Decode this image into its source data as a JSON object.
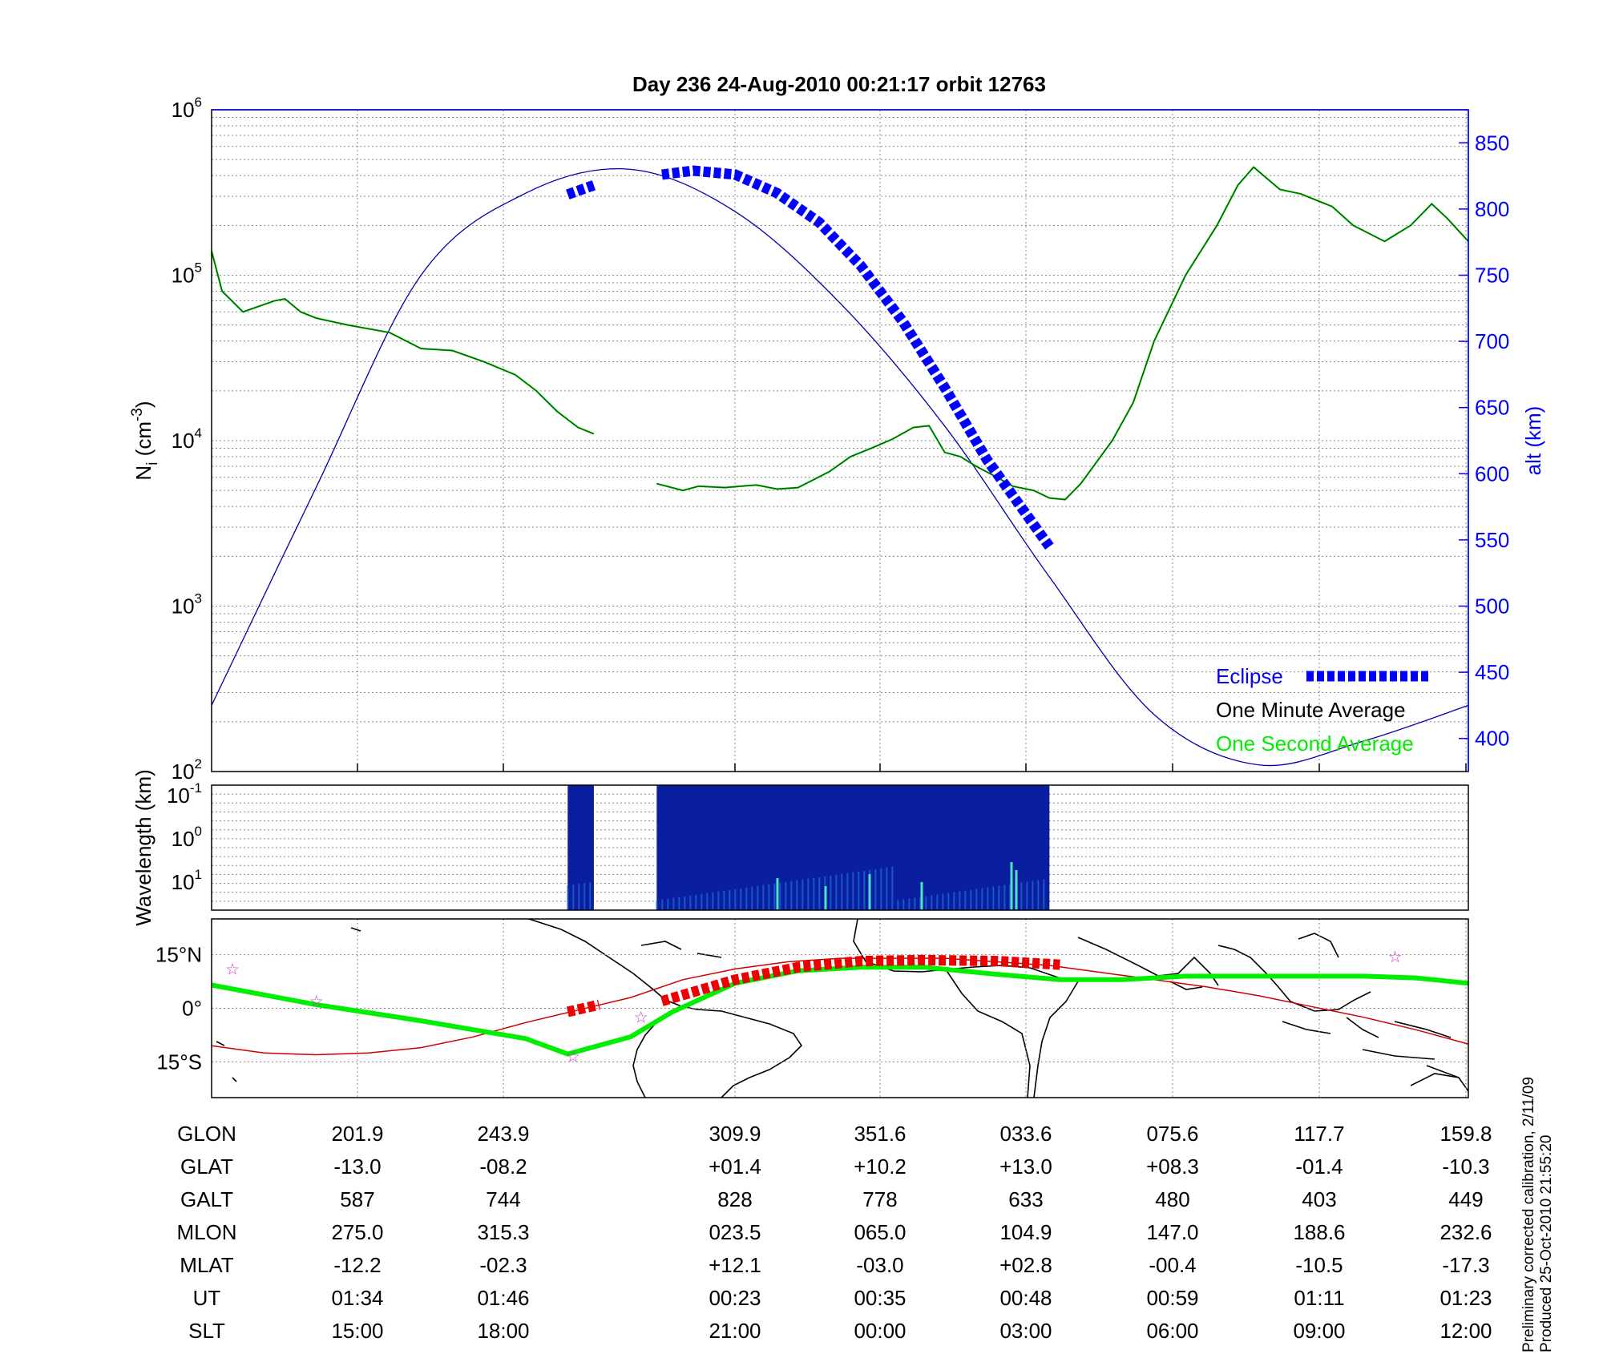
{
  "colors": {
    "ion_line": "#006400",
    "one_second": "#00ff00",
    "alt_line": "#0000aa",
    "eclipse": "#0000ff",
    "axis_blue": "#0000ff",
    "ground_track": "#00ee00",
    "footprint_line": "#cc0000",
    "footprint_eclipse": "#ee0000",
    "stars": "#cc33cc",
    "spectrogram_bg": "#0a1f9f"
  },
  "chart_data": [
    {
      "type": "line",
      "title": "Day 236  24-Aug-2010 00:21:17   orbit 12763",
      "ylabel_main": "N",
      "ylabel_sub": "i",
      "ylabel_unit_pre": " (cm",
      "ylabel_unit_sup": "-3",
      "ylabel_unit_post": ")",
      "y_log_ticks": [
        {
          "value": 100,
          "base": "10",
          "exp": "2"
        },
        {
          "value": 1000,
          "base": "10",
          "exp": "3"
        },
        {
          "value": 10000,
          "base": "10",
          "exp": "4"
        },
        {
          "value": 100000,
          "base": "10",
          "exp": "5"
        },
        {
          "value": 1000000,
          "base": "10",
          "exp": "6"
        }
      ],
      "y_right_label": "alt (km)",
      "y_right_ticks": [
        "400",
        "450",
        "500",
        "550",
        "600",
        "650",
        "700",
        "750",
        "800",
        "850"
      ],
      "y_right_range": [
        375,
        875
      ],
      "x_positions": [
        0,
        1,
        2,
        3,
        4,
        5,
        6,
        7,
        8
      ],
      "legend": {
        "placement": "bottom-right",
        "entries": [
          {
            "label": "Eclipse",
            "color": "#0000ff"
          },
          {
            "label": "One Minute Average",
            "color": "#000000"
          },
          {
            "label": "One Second Average",
            "color": "#00ff00"
          }
        ]
      },
      "series": [
        {
          "name": "One Minute Average",
          "segment_a": [
            [
              0,
              140000
            ],
            [
              0.1,
              80000
            ],
            [
              0.3,
              60000
            ],
            [
              0.6,
              70000
            ],
            [
              0.7,
              72000
            ],
            [
              0.85,
              60000
            ],
            [
              1.0,
              55000
            ],
            [
              1.3,
              50000
            ],
            [
              1.7,
              45000
            ],
            [
              2.0,
              36000
            ],
            [
              2.3,
              35000
            ],
            [
              2.6,
              30000
            ],
            [
              2.9,
              25000
            ],
            [
              3.1,
              20000
            ],
            [
              3.3,
              15000
            ],
            [
              3.5,
              12000
            ],
            [
              3.65,
              11000
            ]
          ],
          "segment_b": [
            [
              4.25,
              5500
            ],
            [
              4.5,
              5000
            ],
            [
              4.65,
              5300
            ],
            [
              4.9,
              5200
            ],
            [
              5.2,
              5400
            ],
            [
              5.4,
              5100
            ],
            [
              5.6,
              5200
            ],
            [
              5.9,
              6500
            ],
            [
              6.1,
              8000
            ],
            [
              6.3,
              9000
            ],
            [
              6.5,
              10200
            ],
            [
              6.7,
              12000
            ],
            [
              6.85,
              12300
            ],
            [
              7.0,
              8500
            ],
            [
              7.15,
              8000
            ],
            [
              7.3,
              7000
            ],
            [
              7.5,
              6000
            ],
            [
              7.65,
              5300
            ],
            [
              7.85,
              5000
            ],
            [
              8.0,
              4500
            ],
            [
              8.15,
              4400
            ],
            [
              8.3,
              5500
            ],
            [
              8.6,
              10000
            ],
            [
              8.8,
              17000
            ],
            [
              9.0,
              40000
            ],
            [
              9.3,
              100000
            ],
            [
              9.6,
              200000
            ],
            [
              9.8,
              350000
            ],
            [
              9.95,
              450000
            ],
            [
              10.2,
              330000
            ],
            [
              10.4,
              310000
            ],
            [
              10.7,
              260000
            ],
            [
              10.9,
              200000
            ],
            [
              11.2,
              160000
            ],
            [
              11.45,
              200000
            ],
            [
              11.65,
              270000
            ],
            [
              11.8,
              220000
            ],
            [
              12.0,
              160000
            ]
          ]
        },
        {
          "name": "alt (km)",
          "points": [
            [
              0,
              425
            ],
            [
              1,
              590
            ],
            [
              2,
              750
            ],
            [
              3,
              812
            ],
            [
              4,
              830
            ],
            [
              5,
              798
            ],
            [
              6,
              729
            ],
            [
              7,
              636
            ],
            [
              8,
              522
            ],
            [
              9,
              418
            ],
            [
              10,
              380
            ],
            [
              11,
              398
            ],
            [
              12,
              425
            ]
          ]
        },
        {
          "name": "Eclipse",
          "segment_a": [
            [
              3.4,
              811
            ],
            [
              3.65,
              818
            ]
          ],
          "segment_b": [
            [
              4.3,
              826
            ],
            [
              4.6,
              829
            ],
            [
              5.0,
              826
            ],
            [
              5.4,
              812
            ],
            [
              5.8,
              790
            ],
            [
              6.2,
              757
            ],
            [
              6.6,
              715
            ],
            [
              7.0,
              665
            ],
            [
              7.4,
              611
            ],
            [
              7.8,
              567
            ],
            [
              8.0,
              545
            ]
          ]
        }
      ]
    },
    {
      "type": "heatmap",
      "ylabel": "Wavelength (km)",
      "y_ticks": [
        {
          "base": "10",
          "exp": "-1"
        },
        {
          "base": "10",
          "exp": "0"
        },
        {
          "base": "10",
          "exp": "1"
        }
      ],
      "blocks": [
        [
          3.4,
          3.65
        ],
        [
          4.25,
          8.0
        ]
      ]
    },
    {
      "type": "line",
      "y_ticks": [
        "15°N",
        "0°",
        "15°S"
      ],
      "y_range": [
        -25,
        25
      ],
      "series": [
        {
          "name": "ground_track",
          "points": [
            [
              0,
              6.5
            ],
            [
              1,
              1
            ],
            [
              2,
              -3.5
            ],
            [
              3,
              -8.5
            ],
            [
              3.4,
              -12.8
            ],
            [
              4.0,
              -8
            ],
            [
              4.4,
              -1
            ],
            [
              5.0,
              7
            ],
            [
              5.6,
              10.5
            ],
            [
              6.2,
              11.5
            ],
            [
              6.8,
              11.5
            ],
            [
              7.5,
              9.5
            ],
            [
              8.1,
              8
            ],
            [
              8.7,
              8
            ],
            [
              9.3,
              9
            ],
            [
              10.0,
              9
            ],
            [
              10.5,
              9
            ],
            [
              11.0,
              9
            ],
            [
              11.5,
              8.5
            ],
            [
              12.0,
              7
            ]
          ]
        },
        {
          "name": "footprint",
          "points": [
            [
              0,
              -10.5
            ],
            [
              0.5,
              -12.5
            ],
            [
              1,
              -13
            ],
            [
              1.5,
              -12.5
            ],
            [
              2,
              -11
            ],
            [
              2.5,
              -8
            ],
            [
              3.0,
              -4
            ],
            [
              3.5,
              -0.5
            ],
            [
              4.0,
              3
            ],
            [
              4.5,
              8
            ],
            [
              5.0,
              11
            ],
            [
              5.5,
              13
            ],
            [
              6.0,
              14
            ],
            [
              6.5,
              14
            ],
            [
              7.0,
              14
            ],
            [
              7.5,
              13
            ],
            [
              8.0,
              12
            ],
            [
              8.5,
              10
            ],
            [
              9.0,
              8
            ],
            [
              9.5,
              6
            ],
            [
              10.0,
              3.5
            ],
            [
              10.5,
              0.5
            ],
            [
              11.0,
              -2.5
            ],
            [
              11.5,
              -6
            ],
            [
              12.0,
              -10
            ]
          ]
        },
        {
          "name": "footprint_eclipse_a",
          "points": [
            [
              3.4,
              -1
            ],
            [
              3.7,
              1
            ]
          ]
        },
        {
          "name": "footprint_eclipse_b",
          "points": [
            [
              4.3,
              2
            ],
            [
              5.0,
              8
            ],
            [
              5.6,
              11.5
            ],
            [
              6.2,
              13.2
            ],
            [
              6.8,
              13.5
            ],
            [
              7.5,
              13.2
            ],
            [
              8.1,
              12.2
            ]
          ]
        }
      ],
      "stars": [
        [
          0.2,
          11
        ],
        [
          1.0,
          2
        ],
        [
          4.1,
          -2.5
        ],
        [
          3.45,
          -13.5
        ],
        [
          11.3,
          14.5
        ]
      ]
    }
  ],
  "table": {
    "rows": [
      {
        "label": "GLON",
        "values": [
          "201.9",
          "243.9",
          "309.9",
          "351.6",
          "033.6",
          "075.6",
          "117.7",
          "159.8"
        ]
      },
      {
        "label": "GLAT",
        "values": [
          "-13.0",
          "-08.2",
          "+01.4",
          "+10.2",
          "+13.0",
          "+08.3",
          "-01.4",
          "-10.3"
        ]
      },
      {
        "label": "GALT",
        "values": [
          "587",
          "744",
          "828",
          "778",
          "633",
          "480",
          "403",
          "449"
        ]
      },
      {
        "label": "MLON",
        "values": [
          "275.0",
          "315.3",
          "023.5",
          "065.0",
          "104.9",
          "147.0",
          "188.6",
          "232.6"
        ]
      },
      {
        "label": "MLAT",
        "values": [
          "-12.2",
          "-02.3",
          "+12.1",
          "-03.0",
          "+02.8",
          "-00.4",
          "-10.5",
          "-17.3"
        ]
      },
      {
        "label": "UT",
        "values": [
          "01:34",
          "01:46",
          "00:23",
          "00:35",
          "00:48",
          "00:59",
          "01:11",
          "01:23"
        ]
      },
      {
        "label": "SLT",
        "values": [
          "15:00",
          "18:00",
          "21:00",
          "00:00",
          "03:00",
          "06:00",
          "09:00",
          "12:00"
        ]
      }
    ]
  },
  "footnote": {
    "line1": "Preliminary corrected calibration, 2/11/09",
    "line2": "Produced 25-Oct-2010 21:55:20"
  }
}
